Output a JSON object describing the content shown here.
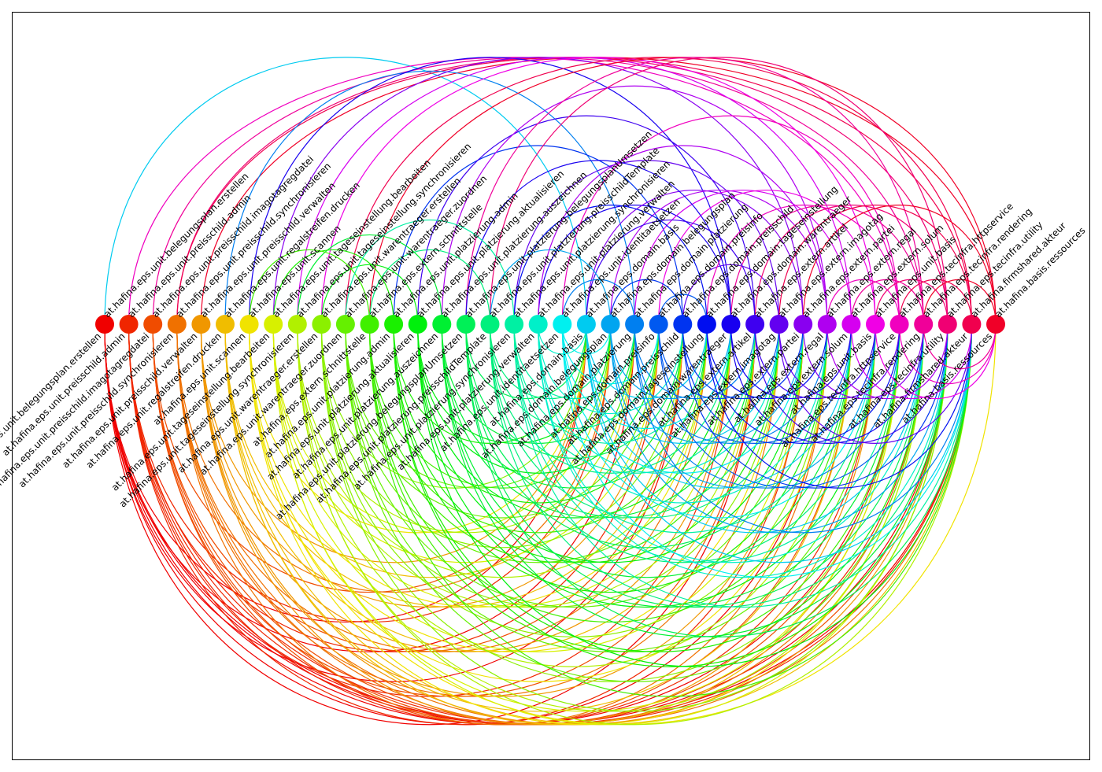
{
  "diagram": {
    "type": "arc-diagram",
    "nodes": [
      {
        "up": "at.hafina.eps.unit.belegungsplan.erstellen",
        "down": "at.hafina.eps.unit.belegungsplan.erstellen"
      },
      {
        "up": "at.hafina.eps.unit.preisschild.admin",
        "down": "at.hafina.eps.unit.preisschild.admin"
      },
      {
        "up": "at.hafina.eps.unit.preisschild.imagotagregdatei",
        "down": "at.hafina.eps.unit.preisschild.imagotagregdatei"
      },
      {
        "up": "at.hafina.eps.unit.preisschild.synchronisieren",
        "down": "at.hafina.eps.unit.preisschild.synchronisieren"
      },
      {
        "up": "at.hafina.eps.unit.preisschild.verwalten",
        "down": "at.hafina.eps.unit.preisschild.verwalten"
      },
      {
        "up": "at.hafina.eps.unit.regalstreifen.drucken",
        "down": "at.hafina.eps.unit.regalstreifen.drucken"
      },
      {
        "up": "at.hafina.eps.unit.scannen",
        "down": "at.hafina.eps.unit.scannen"
      },
      {
        "up": "at.hafina.eps.unit.tageseinstellung.bearbeiten",
        "down": "at.hafina.eps.unit.tageseinstellung.bearbeiten"
      },
      {
        "up": "at.hafina.eps.unit.tageseinstellung.synchronisieren",
        "down": "at.hafina.eps.unit.tageseinstellung.synchronisieren"
      },
      {
        "up": "at.hafina.eps.unit.warentraeger.erstellen",
        "down": "at.hafina.eps.unit.warentraeger.erstellen"
      },
      {
        "up": "at.hafina.eps.unit.warentraeger.zuordnen",
        "down": "at.hafina.eps.unit.warentraeger.zuordnen"
      },
      {
        "up": "at.hafina.eps.extern.schnittstelle",
        "down": "at.hafina.eps.extern.schnittstelle"
      },
      {
        "up": "at.hafina.eps.unit.platzierung.admin",
        "down": "at.hafina.eps.unit.platzierung.admin"
      },
      {
        "up": "at.hafina.eps.unit.platzierung.aktualisieren",
        "down": "at.hafina.eps.unit.platzierung.aktualisieren"
      },
      {
        "up": "at.hafina.eps.unit.platzierung.auszeichnen",
        "down": "at.hafina.eps.unit.platzierung.auszeichnen"
      },
      {
        "up": "at.hafina.eps.unit.platzierung.belegungsplanUmsetzen",
        "down": "at.hafina.eps.unit.platzierung.belegungsplanUmsetzen"
      },
      {
        "up": "at.hafina.eps.unit.platzierung.preisschildTemplate",
        "down": "at.hafina.eps.unit.platzierung.preisschildTemplate"
      },
      {
        "up": "at.hafina.eps.unit.platzierung.synchronisieren",
        "down": "at.hafina.eps.unit.platzierung.synchronisieren"
      },
      {
        "up": "at.hafina.eps.unit.platzierung.verwalten",
        "down": "at.hafina.eps.unit.platzierung.verwalten"
      },
      {
        "up": "at.hafina.eps.unit.identitaetsetzen",
        "down": "at.hafina.eps.unit.identitaetsetzen"
      },
      {
        "up": "at.hafina.eps.domain.basis",
        "down": "at.hafina.eps.domain.basis"
      },
      {
        "up": "at.hafina.eps.domain.belegungsplan",
        "down": "at.hafina.eps.domain.belegungsplan"
      },
      {
        "up": "at.hafina.eps.domain.platzierung",
        "down": "at.hafina.eps.domain.platzierung"
      },
      {
        "up": "at.hafina.eps.domain.preisinfo",
        "down": "at.hafina.eps.domain.preisinfo"
      },
      {
        "up": "at.hafina.eps.domain.preisschild",
        "down": "at.hafina.eps.domain.preisschild"
      },
      {
        "up": "at.hafina.eps.domain.tageseinstellung",
        "down": "at.hafina.eps.domain.tageseinstellung"
      },
      {
        "up": "at.hafina.eps.domain.warentraeger",
        "down": "at.hafina.eps.domain.warentraeger"
      },
      {
        "up": "at.hafina.eps.extern.artikel",
        "down": "at.hafina.eps.extern.artikel"
      },
      {
        "up": "at.hafina.eps.extern.imagotag",
        "down": "at.hafina.eps.extern.imagotag"
      },
      {
        "up": "at.hafina.eps.extern.partei",
        "down": "at.hafina.eps.extern.partei"
      },
      {
        "up": "at.hafina.eps.extern.regal",
        "down": "at.hafina.eps.extern.regal"
      },
      {
        "up": "at.hafina.eps.extern.solum",
        "down": "at.hafina.eps.extern.solum"
      },
      {
        "up": "at.hafina.eps.unit.basis",
        "down": "at.hafina.eps.unit.basis"
      },
      {
        "up": "at.hafina.eps.tecinfra.httpservice",
        "down": "at.hafina.eps.tecinfra.httpservice"
      },
      {
        "up": "at.hafina.eps.tecinfra.rendering",
        "down": "at.hafina.eps.tecinfra.rendering"
      },
      {
        "up": "at.hafina.eps.tecinfra.utility",
        "down": "at.hafina.eps.tecinfra.utility"
      },
      {
        "up": "at.hafina.firmshared.akteur",
        "down": "at.hafina.firmshared.akteur"
      },
      {
        "up": "at.hafina.basis.ressources",
        "down": "at.hafina.basis.ressources"
      }
    ],
    "upper_arcs": [
      [
        20,
        0
      ],
      [
        33,
        1
      ],
      [
        34,
        2
      ],
      [
        35,
        3
      ],
      [
        36,
        3
      ],
      [
        37,
        4
      ],
      [
        22,
        5
      ],
      [
        26,
        6
      ],
      [
        29,
        7
      ],
      [
        31,
        8
      ],
      [
        32,
        9
      ],
      [
        36,
        10
      ],
      [
        37,
        11
      ],
      [
        16,
        11
      ],
      [
        24,
        12
      ],
      [
        27,
        13
      ],
      [
        30,
        14
      ],
      [
        34,
        15
      ],
      [
        35,
        16
      ],
      [
        28,
        17
      ],
      [
        26,
        18
      ],
      [
        33,
        19
      ],
      [
        29,
        20
      ],
      [
        30,
        21
      ],
      [
        31,
        22
      ],
      [
        32,
        23
      ],
      [
        28,
        24
      ],
      [
        33,
        25
      ],
      [
        34,
        26
      ],
      [
        35,
        27
      ],
      [
        36,
        28
      ],
      [
        37,
        29
      ],
      [
        33,
        30
      ],
      [
        34,
        31
      ],
      [
        35,
        32
      ],
      [
        36,
        33
      ],
      [
        37,
        34
      ],
      [
        27,
        20
      ],
      [
        24,
        21
      ],
      [
        23,
        25
      ],
      [
        14,
        8
      ],
      [
        13,
        9
      ],
      [
        12,
        7
      ],
      [
        11,
        6
      ],
      [
        26,
        15
      ],
      [
        25,
        17
      ],
      [
        22,
        19
      ],
      [
        21,
        16
      ],
      [
        17,
        10
      ],
      [
        30,
        18
      ]
    ],
    "lower_arcs": [
      [
        0,
        20
      ],
      [
        0,
        22
      ],
      [
        0,
        24
      ],
      [
        0,
        27
      ],
      [
        0,
        30
      ],
      [
        0,
        33
      ],
      [
        0,
        35
      ],
      [
        0,
        36
      ],
      [
        1,
        21
      ],
      [
        1,
        23
      ],
      [
        1,
        26
      ],
      [
        1,
        29
      ],
      [
        1,
        32
      ],
      [
        1,
        34
      ],
      [
        1,
        36
      ],
      [
        2,
        20
      ],
      [
        2,
        24
      ],
      [
        2,
        27
      ],
      [
        2,
        31
      ],
      [
        2,
        33
      ],
      [
        2,
        35
      ],
      [
        3,
        21
      ],
      [
        3,
        25
      ],
      [
        3,
        28
      ],
      [
        3,
        30
      ],
      [
        3,
        34
      ],
      [
        3,
        36
      ],
      [
        4,
        20
      ],
      [
        4,
        23
      ],
      [
        4,
        26
      ],
      [
        4,
        29
      ],
      [
        4,
        32
      ],
      [
        4,
        35
      ],
      [
        5,
        22
      ],
      [
        5,
        24
      ],
      [
        5,
        27
      ],
      [
        5,
        31
      ],
      [
        5,
        33
      ],
      [
        5,
        36
      ],
      [
        6,
        20
      ],
      [
        6,
        25
      ],
      [
        6,
        28
      ],
      [
        6,
        30
      ],
      [
        6,
        34
      ],
      [
        6,
        37
      ],
      [
        7,
        21
      ],
      [
        7,
        23
      ],
      [
        7,
        26
      ],
      [
        7,
        29
      ],
      [
        7,
        33
      ],
      [
        7,
        35
      ],
      [
        8,
        22
      ],
      [
        8,
        25
      ],
      [
        8,
        27
      ],
      [
        8,
        31
      ],
      [
        8,
        34
      ],
      [
        8,
        36
      ],
      [
        9,
        20
      ],
      [
        9,
        24
      ],
      [
        9,
        28
      ],
      [
        9,
        30
      ],
      [
        9,
        33
      ],
      [
        9,
        35
      ],
      [
        10,
        21
      ],
      [
        10,
        23
      ],
      [
        10,
        26
      ],
      [
        10,
        29
      ],
      [
        10,
        32
      ],
      [
        10,
        34
      ],
      [
        11,
        22
      ],
      [
        11,
        25
      ],
      [
        11,
        27
      ],
      [
        11,
        31
      ],
      [
        11,
        33
      ],
      [
        11,
        36
      ],
      [
        12,
        20
      ],
      [
        12,
        24
      ],
      [
        12,
        28
      ],
      [
        12,
        30
      ],
      [
        12,
        34
      ],
      [
        12,
        35
      ],
      [
        13,
        21
      ],
      [
        13,
        23
      ],
      [
        13,
        26
      ],
      [
        13,
        29
      ],
      [
        13,
        32
      ],
      [
        13,
        36
      ],
      [
        14,
        22
      ],
      [
        14,
        25
      ],
      [
        14,
        27
      ],
      [
        14,
        31
      ],
      [
        14,
        33
      ],
      [
        14,
        35
      ],
      [
        15,
        20
      ],
      [
        15,
        24
      ],
      [
        15,
        28
      ],
      [
        15,
        30
      ],
      [
        15,
        34
      ],
      [
        15,
        36
      ],
      [
        16,
        21
      ],
      [
        16,
        23
      ],
      [
        16,
        26
      ],
      [
        16,
        29
      ],
      [
        16,
        32
      ],
      [
        16,
        35
      ],
      [
        17,
        22
      ],
      [
        17,
        25
      ],
      [
        17,
        27
      ],
      [
        17,
        31
      ],
      [
        17,
        33
      ],
      [
        17,
        36
      ],
      [
        18,
        20
      ],
      [
        18,
        24
      ],
      [
        18,
        28
      ],
      [
        18,
        30
      ],
      [
        18,
        34
      ],
      [
        18,
        35
      ],
      [
        19,
        21
      ],
      [
        19,
        23
      ],
      [
        19,
        26
      ],
      [
        19,
        29
      ],
      [
        19,
        32
      ],
      [
        19,
        36
      ],
      [
        20,
        25
      ],
      [
        20,
        28
      ],
      [
        20,
        31
      ],
      [
        20,
        34
      ],
      [
        20,
        36
      ],
      [
        21,
        26
      ],
      [
        21,
        29
      ],
      [
        21,
        32
      ],
      [
        21,
        35
      ],
      [
        22,
        27
      ],
      [
        22,
        30
      ],
      [
        22,
        33
      ],
      [
        22,
        36
      ],
      [
        23,
        28
      ],
      [
        23,
        31
      ],
      [
        23,
        34
      ],
      [
        24,
        29
      ],
      [
        24,
        32
      ],
      [
        24,
        35
      ],
      [
        25,
        30
      ],
      [
        25,
        33
      ],
      [
        25,
        36
      ],
      [
        26,
        31
      ],
      [
        26,
        34
      ],
      [
        27,
        32
      ],
      [
        27,
        35
      ],
      [
        28,
        33
      ],
      [
        28,
        36
      ],
      [
        29,
        34
      ],
      [
        30,
        35
      ],
      [
        31,
        36
      ],
      [
        32,
        37
      ],
      [
        33,
        37
      ],
      [
        34,
        37
      ]
    ]
  }
}
